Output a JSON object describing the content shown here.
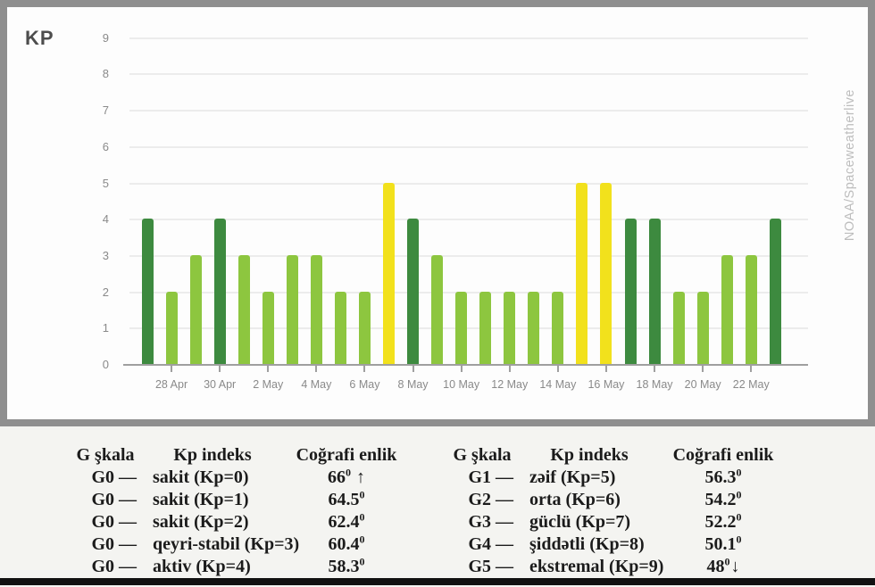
{
  "chart_data": {
    "type": "bar",
    "title": "KP",
    "xlabel": "",
    "ylabel": "",
    "ylim": [
      0,
      9
    ],
    "yticks": [
      0,
      1,
      2,
      3,
      4,
      5,
      6,
      7,
      8,
      9
    ],
    "grid": "horizontal",
    "legend_position": "none",
    "x": [
      "27 Apr",
      "28 Apr",
      "29 Apr",
      "30 Apr",
      "1 May",
      "2 May",
      "3 May",
      "4 May",
      "5 May",
      "6 May",
      "7 May",
      "8 May",
      "9 May",
      "10 May",
      "11 May",
      "12 May",
      "13 May",
      "14 May",
      "15 May",
      "16 May",
      "17 May",
      "18 May",
      "19 May",
      "20 May",
      "21 May",
      "22 May",
      "23 May"
    ],
    "values": [
      4,
      2,
      3,
      4,
      3,
      2,
      3,
      3,
      2,
      2,
      5,
      4,
      3,
      2,
      2,
      2,
      2,
      2,
      5,
      5,
      4,
      4,
      2,
      2,
      3,
      3,
      4
    ],
    "tick_labels": [
      "28 Apr",
      "30 Apr",
      "2 May",
      "4 May",
      "6 May",
      "8 May",
      "10 May",
      "12 May",
      "14 May",
      "16 May",
      "18 May",
      "20 May",
      "22 May"
    ],
    "tick_start_index": 1,
    "tick_every": 2,
    "colors": {
      "quiet": "#8dc63f",
      "active": "#3d8a3f",
      "storm": "#f2e11c"
    },
    "color_rule": "Kp<=3 quiet light-green, Kp=4 active dark-green, Kp>=5 storm yellow"
  },
  "watermark": "NOAA/Spaceweatherlive",
  "legend_tables": {
    "left": {
      "headers": [
        "G şkala",
        "Kp indeks",
        "Coğrafi enlik"
      ],
      "rows": [
        {
          "g": "G0",
          "dash": "—",
          "kp": "sakit (Kp=0)",
          "lat": "66",
          "deg": "0",
          "arrow": " ↑"
        },
        {
          "g": "G0",
          "dash": "—",
          "kp": "sakit (Kp=1)",
          "lat": "64.5",
          "deg": "0",
          "arrow": ""
        },
        {
          "g": "G0",
          "dash": "—",
          "kp": "sakit (Kp=2)",
          "lat": "62.4",
          "deg": "0",
          "arrow": ""
        },
        {
          "g": "G0",
          "dash": "—",
          "kp": "qeyri-stabil (Kp=3)",
          "lat": "60.4",
          "deg": "0",
          "arrow": ""
        },
        {
          "g": "G0",
          "dash": "—",
          "kp": "aktiv (Kp=4)",
          "lat": "58.3",
          "deg": "0",
          "arrow": ""
        }
      ]
    },
    "right": {
      "headers": [
        "G şkala",
        "Kp indeks",
        "Coğrafi enlik"
      ],
      "rows": [
        {
          "g": "G1",
          "dash": "—",
          "kp": "zəif (Kp=5)",
          "lat": "56.3",
          "deg": "0",
          "arrow": ""
        },
        {
          "g": "G2",
          "dash": "—",
          "kp": "orta (Kp=6)",
          "lat": "54.2",
          "deg": "0",
          "arrow": ""
        },
        {
          "g": "G3",
          "dash": "—",
          "kp": "güclü (Kp=7)",
          "lat": "52.2",
          "deg": "0",
          "arrow": ""
        },
        {
          "g": "G4",
          "dash": "—",
          "kp": "şiddətli (Kp=8)",
          "lat": "50.1",
          "deg": "0",
          "arrow": ""
        },
        {
          "g": "G5",
          "dash": "—",
          "kp": "ekstremal (Kp=9)",
          "lat": "48",
          "deg": "0",
          "arrow": "↓"
        }
      ]
    }
  }
}
